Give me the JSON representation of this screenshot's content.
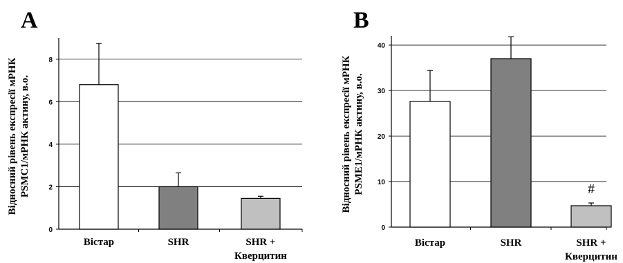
{
  "chart_data": [
    {
      "type": "bar",
      "panel": "A",
      "ylabel_lines": [
        "Відносний рівень експресії мРНК",
        "PSMC1/мРНК актину, в.о."
      ],
      "categories": [
        [
          "Вістар"
        ],
        [
          "SHR"
        ],
        [
          "SHR +",
          "Кверцитин"
        ]
      ],
      "values": [
        6.8,
        2.0,
        1.45
      ],
      "errors": [
        1.95,
        0.65,
        0.1
      ],
      "colors": [
        "#ffffff",
        "#808080",
        "#c0c0c0"
      ],
      "ylim": [
        0,
        9
      ],
      "yticks": [
        0,
        2,
        4,
        6,
        8
      ],
      "grid": true,
      "annotations": []
    },
    {
      "type": "bar",
      "panel": "B",
      "ylabel_lines": [
        "Відносний рівень експресії мРНК",
        "PSME1/мРНК актину, в.о."
      ],
      "categories": [
        [
          "Вістар"
        ],
        [
          "SHR"
        ],
        [
          "SHR +",
          "Кверцитин"
        ]
      ],
      "values": [
        27.6,
        37.0,
        4.7
      ],
      "errors": [
        6.8,
        4.8,
        0.6
      ],
      "colors": [
        "#ffffff",
        "#808080",
        "#c0c0c0"
      ],
      "ylim": [
        0,
        42
      ],
      "yticks": [
        0,
        10,
        20,
        30,
        40
      ],
      "grid": true,
      "annotations": [
        {
          "bar": 2,
          "text": "#"
        }
      ]
    }
  ]
}
